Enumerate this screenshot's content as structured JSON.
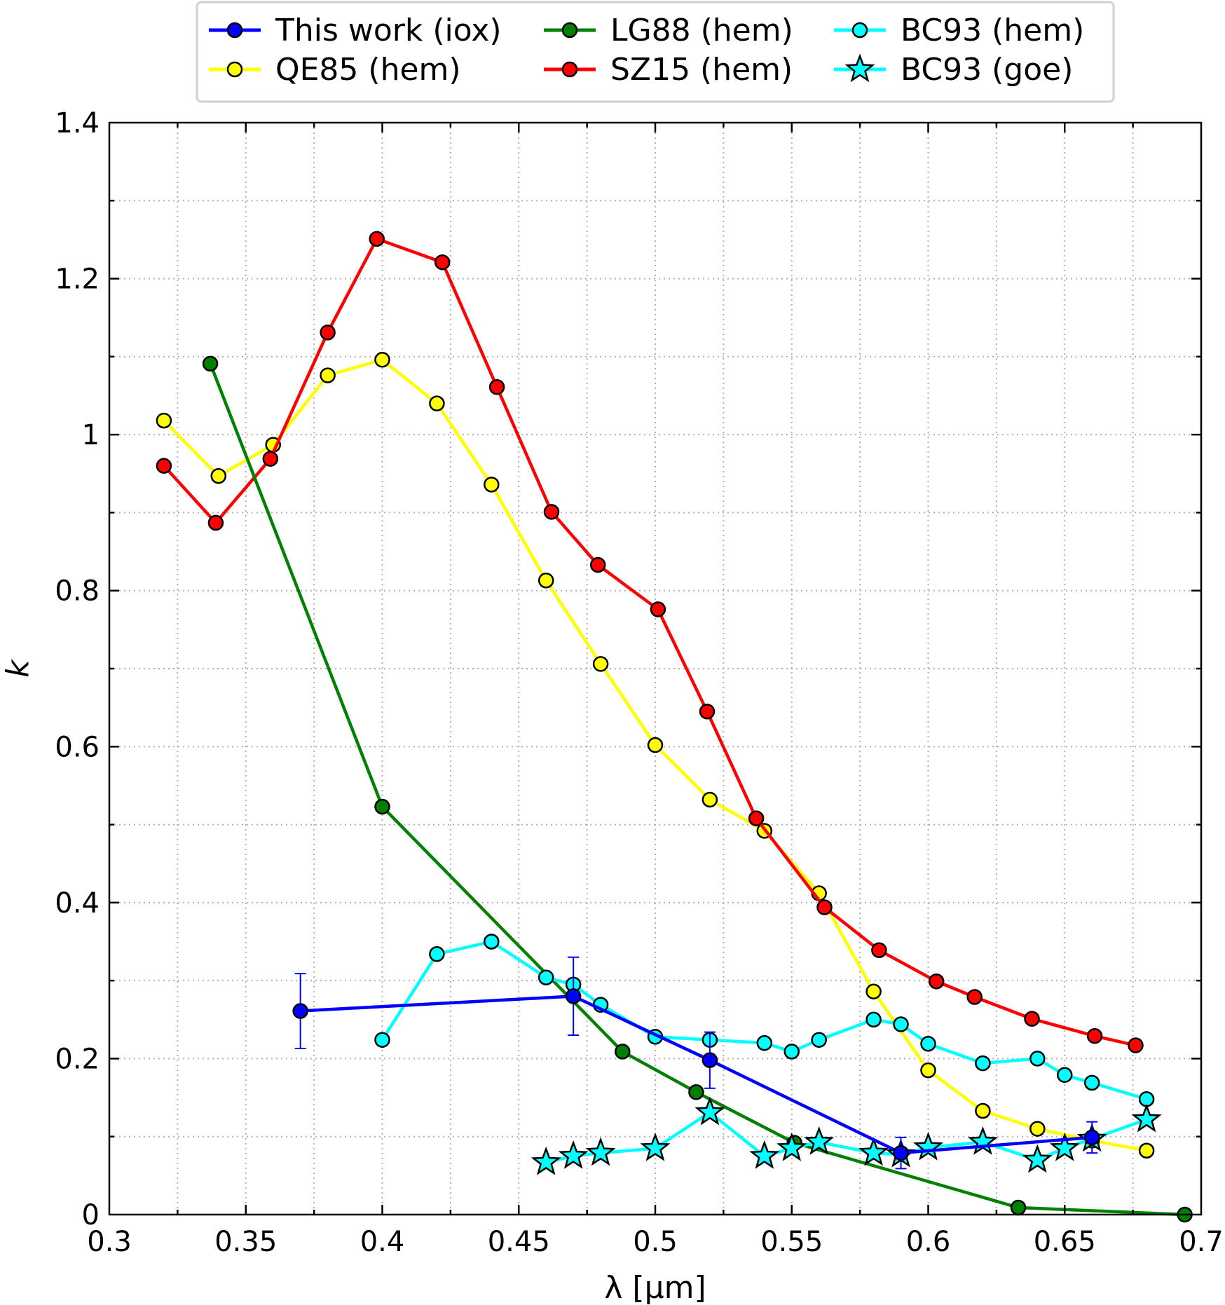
{
  "chart_data": {
    "type": "line",
    "xlabel": "λ [µm]",
    "ylabel": "k",
    "xlim": [
      0.3,
      0.7
    ],
    "ylim": [
      0,
      1.4
    ],
    "xticks": [
      "0.3",
      "0.35",
      "0.4",
      "0.45",
      "0.5",
      "0.55",
      "0.6",
      "0.65",
      "0.7"
    ],
    "yticks": [
      "0",
      "0.2",
      "0.4",
      "0.6",
      "0.8",
      "1",
      "1.2",
      "1.4"
    ],
    "grid": true,
    "legend_placement": "top-center",
    "series": [
      {
        "name": "This work (iox)",
        "color": "#0000ff",
        "marker": "circle",
        "x": [
          0.37,
          0.47,
          0.52,
          0.59,
          0.66
        ],
        "y": [
          0.261,
          0.28,
          0.198,
          0.079,
          0.099
        ],
        "yerr": [
          0.048,
          0.05,
          0.036,
          0.02,
          0.02
        ]
      },
      {
        "name": "QE85 (hem)",
        "color": "#ffff00",
        "marker": "circle",
        "x": [
          0.32,
          0.34,
          0.36,
          0.38,
          0.4,
          0.42,
          0.44,
          0.46,
          0.48,
          0.5,
          0.52,
          0.54,
          0.56,
          0.58,
          0.6,
          0.62,
          0.64,
          0.66,
          0.68
        ],
        "y": [
          1.018,
          0.947,
          0.987,
          1.076,
          1.096,
          1.04,
          0.936,
          0.813,
          0.706,
          0.602,
          0.532,
          0.492,
          0.412,
          0.286,
          0.185,
          0.133,
          0.11,
          0.095,
          0.082
        ]
      },
      {
        "name": "LG88 (hem)",
        "color": "#008000",
        "marker": "circle",
        "x": [
          0.337,
          0.4,
          0.488,
          0.515,
          0.551,
          0.633,
          0.694
        ],
        "y": [
          1.091,
          0.523,
          0.209,
          0.157,
          0.092,
          0.009,
          0.0
        ]
      },
      {
        "name": "SZ15 (hem)",
        "color": "#ff0000",
        "marker": "circle",
        "x": [
          0.32,
          0.339,
          0.359,
          0.38,
          0.398,
          0.422,
          0.442,
          0.462,
          0.479,
          0.501,
          0.519,
          0.537,
          0.562,
          0.582,
          0.603,
          0.617,
          0.638,
          0.661,
          0.676
        ],
        "y": [
          0.96,
          0.887,
          0.969,
          1.131,
          1.251,
          1.221,
          1.061,
          0.901,
          0.833,
          0.776,
          0.645,
          0.508,
          0.394,
          0.339,
          0.299,
          0.279,
          0.251,
          0.229,
          0.217
        ]
      },
      {
        "name": "BC93 (hem)",
        "color": "#00ffff",
        "marker": "circle",
        "x": [
          0.4,
          0.42,
          0.44,
          0.46,
          0.47,
          0.48,
          0.5,
          0.52,
          0.54,
          0.55,
          0.56,
          0.58,
          0.59,
          0.6,
          0.62,
          0.64,
          0.65,
          0.66,
          0.68
        ],
        "y": [
          0.224,
          0.334,
          0.35,
          0.304,
          0.295,
          0.269,
          0.228,
          0.224,
          0.22,
          0.209,
          0.224,
          0.25,
          0.244,
          0.219,
          0.194,
          0.2,
          0.179,
          0.169,
          0.148
        ]
      },
      {
        "name": "BC93 (goe)",
        "color": "#00ffff",
        "marker": "star",
        "x": [
          0.46,
          0.47,
          0.48,
          0.5,
          0.52,
          0.54,
          0.55,
          0.56,
          0.58,
          0.59,
          0.6,
          0.62,
          0.64,
          0.65,
          0.66,
          0.68
        ],
        "y": [
          0.067,
          0.075,
          0.079,
          0.085,
          0.131,
          0.075,
          0.085,
          0.093,
          0.079,
          0.077,
          0.086,
          0.093,
          0.07,
          0.085,
          0.097,
          0.122
        ]
      }
    ]
  }
}
